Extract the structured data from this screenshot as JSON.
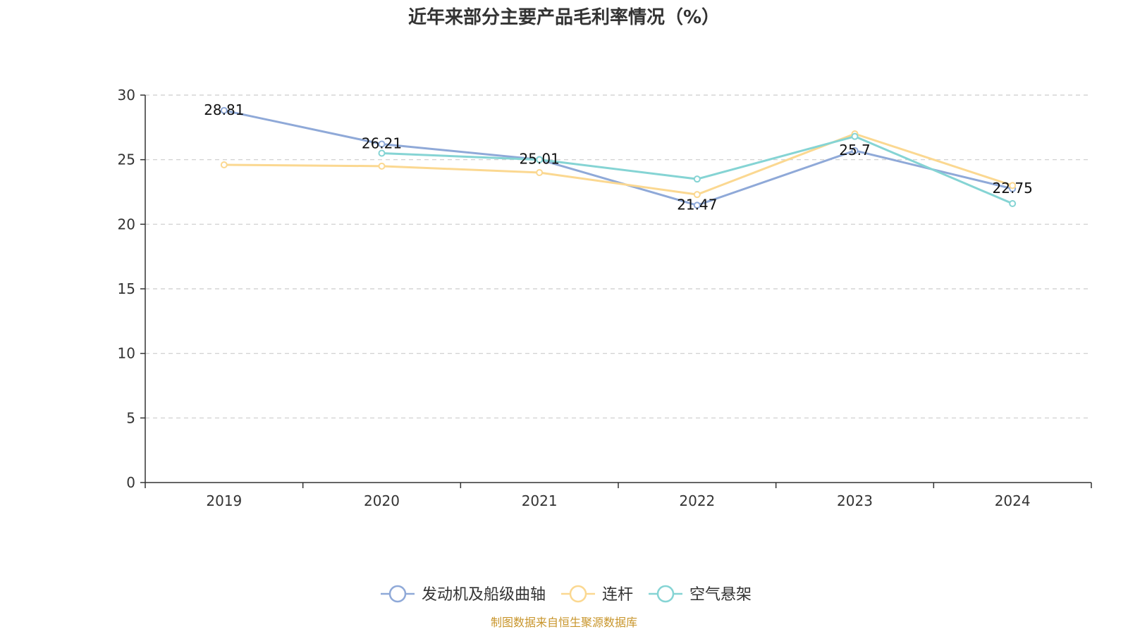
{
  "source_note": "制图数据来自恒生聚源数据库",
  "colors": {
    "series": [
      "#8FA9D8",
      "#FBD891",
      "#85D4D4"
    ],
    "grid": "#cccccc",
    "axis": "#333333",
    "text": "#333333",
    "source": "#C8952B"
  },
  "chart_data": {
    "type": "line",
    "title": "近年来部分主要产品毛利率情况（%）",
    "xlabel": "",
    "ylabel": "",
    "categories": [
      "2019",
      "2020",
      "2021",
      "2022",
      "2023",
      "2024"
    ],
    "ylim": [
      0,
      30
    ],
    "yticks": [
      0,
      5,
      10,
      15,
      20,
      25,
      30
    ],
    "grid": true,
    "legend_position": "bottom-center",
    "series": [
      {
        "name": "发动机及船级曲轴",
        "values": [
          28.81,
          26.21,
          25.01,
          21.47,
          25.7,
          22.75
        ],
        "labels": [
          "28.81",
          "26.21",
          "25.01",
          "21.47",
          "25.7",
          "22.75"
        ]
      },
      {
        "name": "连杆",
        "values": [
          24.6,
          24.5,
          24.0,
          22.3,
          27.0,
          23.0
        ]
      },
      {
        "name": "空气悬架",
        "values": [
          null,
          25.5,
          25.0,
          23.5,
          26.8,
          21.6
        ]
      }
    ]
  }
}
